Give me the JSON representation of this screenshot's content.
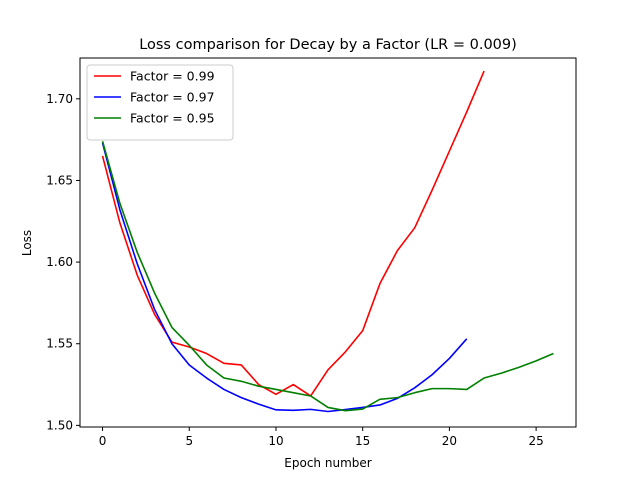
{
  "chart_data": {
    "type": "line",
    "title": "Loss comparison for Decay by a Factor (LR = 0.009)",
    "xlabel": "Epoch number",
    "ylabel": "Loss",
    "xlim": [
      -1.3,
      27.3
    ],
    "ylim": [
      1.499,
      1.725
    ],
    "xticks": [
      0,
      5,
      10,
      15,
      20,
      25
    ],
    "yticks": [
      1.5,
      1.55,
      1.6,
      1.65,
      1.7
    ],
    "ytick_labels": [
      "1.50",
      "1.55",
      "1.60",
      "1.65",
      "1.70"
    ],
    "grid": false,
    "legend_position": "top-left",
    "series": [
      {
        "name": "Factor = 0.99",
        "color": "#ff0000",
        "x": [
          0,
          1,
          2,
          3,
          4,
          5,
          6,
          7,
          8,
          9,
          10,
          11,
          12,
          13,
          14,
          15,
          16,
          17,
          18,
          19,
          20,
          21,
          22
        ],
        "values": [
          1.665,
          1.624,
          1.592,
          1.568,
          1.551,
          1.548,
          1.544,
          1.538,
          1.537,
          1.525,
          1.519,
          1.525,
          1.518,
          1.534,
          1.545,
          1.558,
          1.587,
          1.607,
          1.621,
          1.644,
          1.668,
          1.692,
          1.717
        ]
      },
      {
        "name": "Factor = 0.97",
        "color": "#0000ff",
        "x": [
          0,
          1,
          2,
          3,
          4,
          5,
          6,
          7,
          8,
          9,
          10,
          11,
          12,
          13,
          14,
          15,
          16,
          17,
          18,
          19,
          20,
          21
        ],
        "values": [
          1.673,
          1.632,
          1.599,
          1.571,
          1.55,
          1.537,
          1.529,
          1.522,
          1.517,
          1.513,
          1.5095,
          1.5092,
          1.5098,
          1.5085,
          1.5097,
          1.511,
          1.5125,
          1.5165,
          1.523,
          1.531,
          1.541,
          1.553
        ]
      },
      {
        "name": "Factor = 0.95",
        "color": "#008000",
        "x": [
          0,
          1,
          2,
          3,
          4,
          5,
          6,
          7,
          8,
          9,
          10,
          11,
          12,
          13,
          14,
          15,
          16,
          17,
          18,
          19,
          20,
          21,
          22,
          23,
          24,
          25,
          26
        ],
        "values": [
          1.674,
          1.636,
          1.606,
          1.581,
          1.56,
          1.549,
          1.537,
          1.529,
          1.527,
          1.524,
          1.522,
          1.52,
          1.518,
          1.511,
          1.509,
          1.51,
          1.516,
          1.517,
          1.52,
          1.5225,
          1.5225,
          1.522,
          1.529,
          1.532,
          1.5355,
          1.5395,
          1.544
        ]
      }
    ]
  }
}
